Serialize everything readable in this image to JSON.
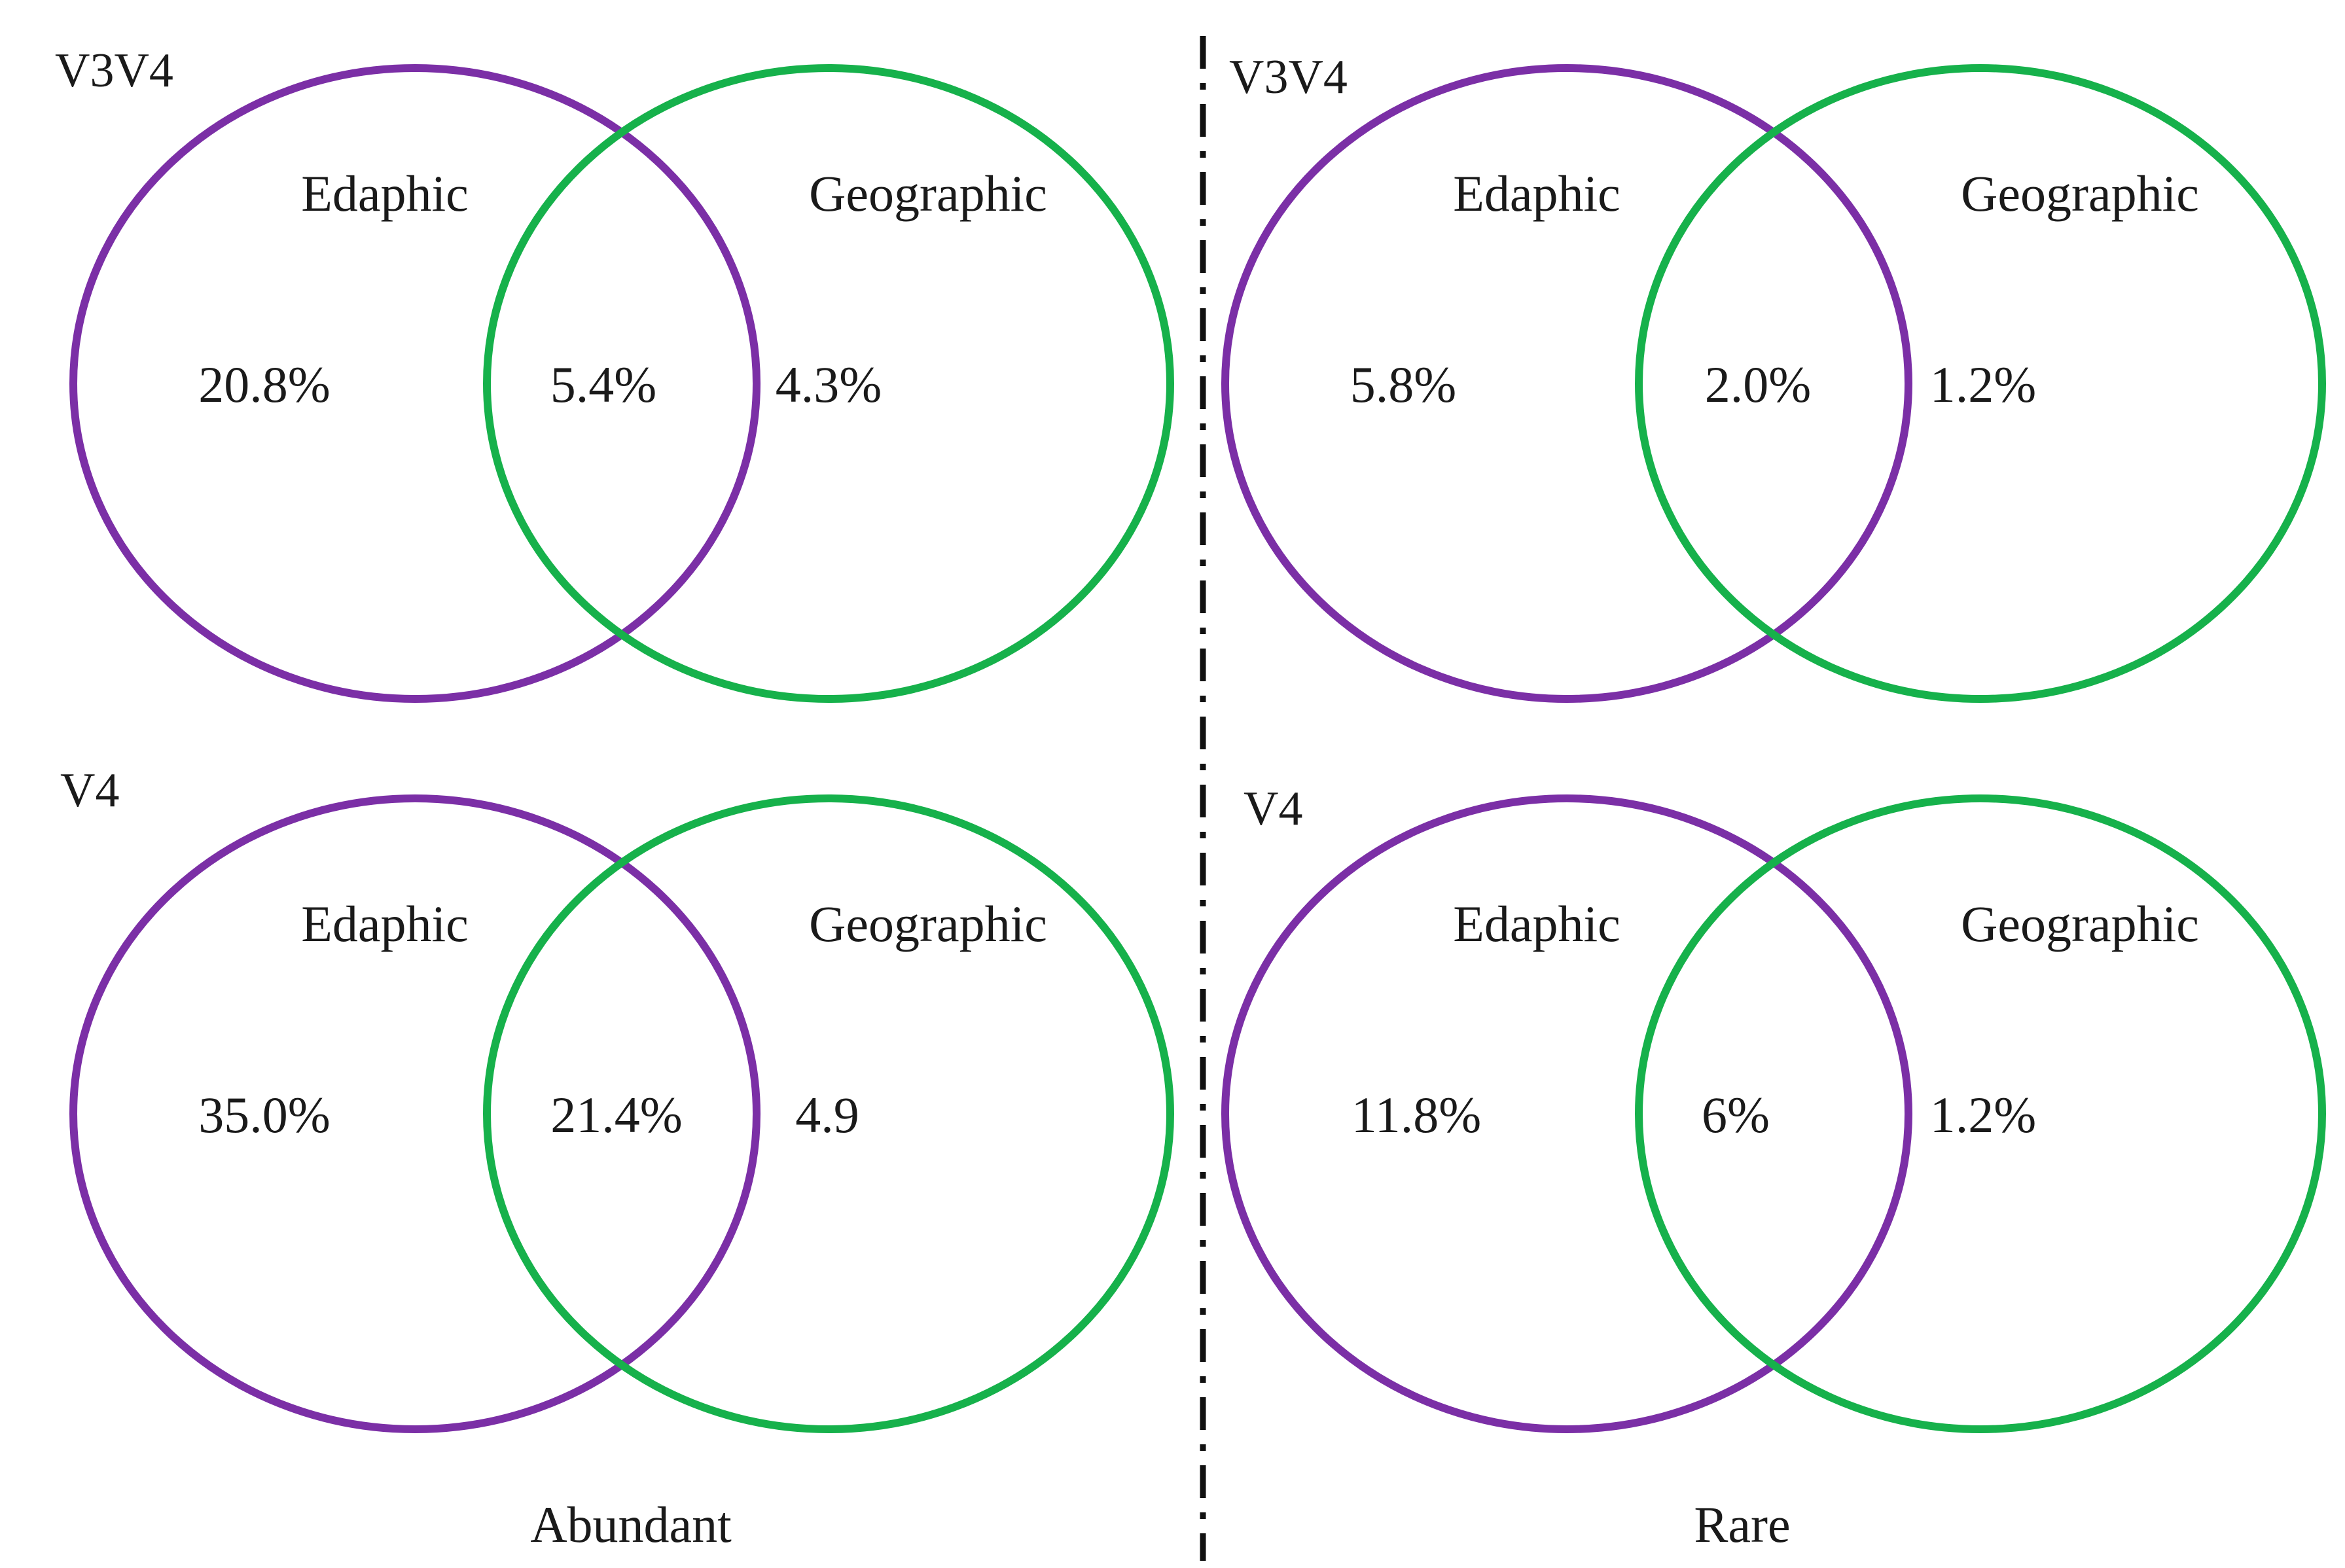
{
  "colors": {
    "edaphic": "#7B2FA6",
    "geographic": "#16B14B",
    "divider": "#111111",
    "text": "#1a1a1a"
  },
  "panels": [
    {
      "tag": "V3V4",
      "set_a": "Edaphic",
      "set_b": "Geographic",
      "only_a": "20.8%",
      "both": "5.4%",
      "only_b": "4.3%"
    },
    {
      "tag": "V3V4",
      "set_a": "Edaphic",
      "set_b": "Geographic",
      "only_a": "5.8%",
      "both": "2.0%",
      "only_b": "1.2%"
    },
    {
      "tag": "V4",
      "set_a": "Edaphic",
      "set_b": "Geographic",
      "only_a": "35.0%",
      "both": "21.4%",
      "only_b": "4.9"
    },
    {
      "tag": "V4",
      "set_a": "Edaphic",
      "set_b": "Geographic",
      "only_a": "11.8%",
      "both": "6%",
      "only_b": "1.2%"
    }
  ],
  "footer": {
    "left": "Abundant",
    "right": "Rare"
  }
}
